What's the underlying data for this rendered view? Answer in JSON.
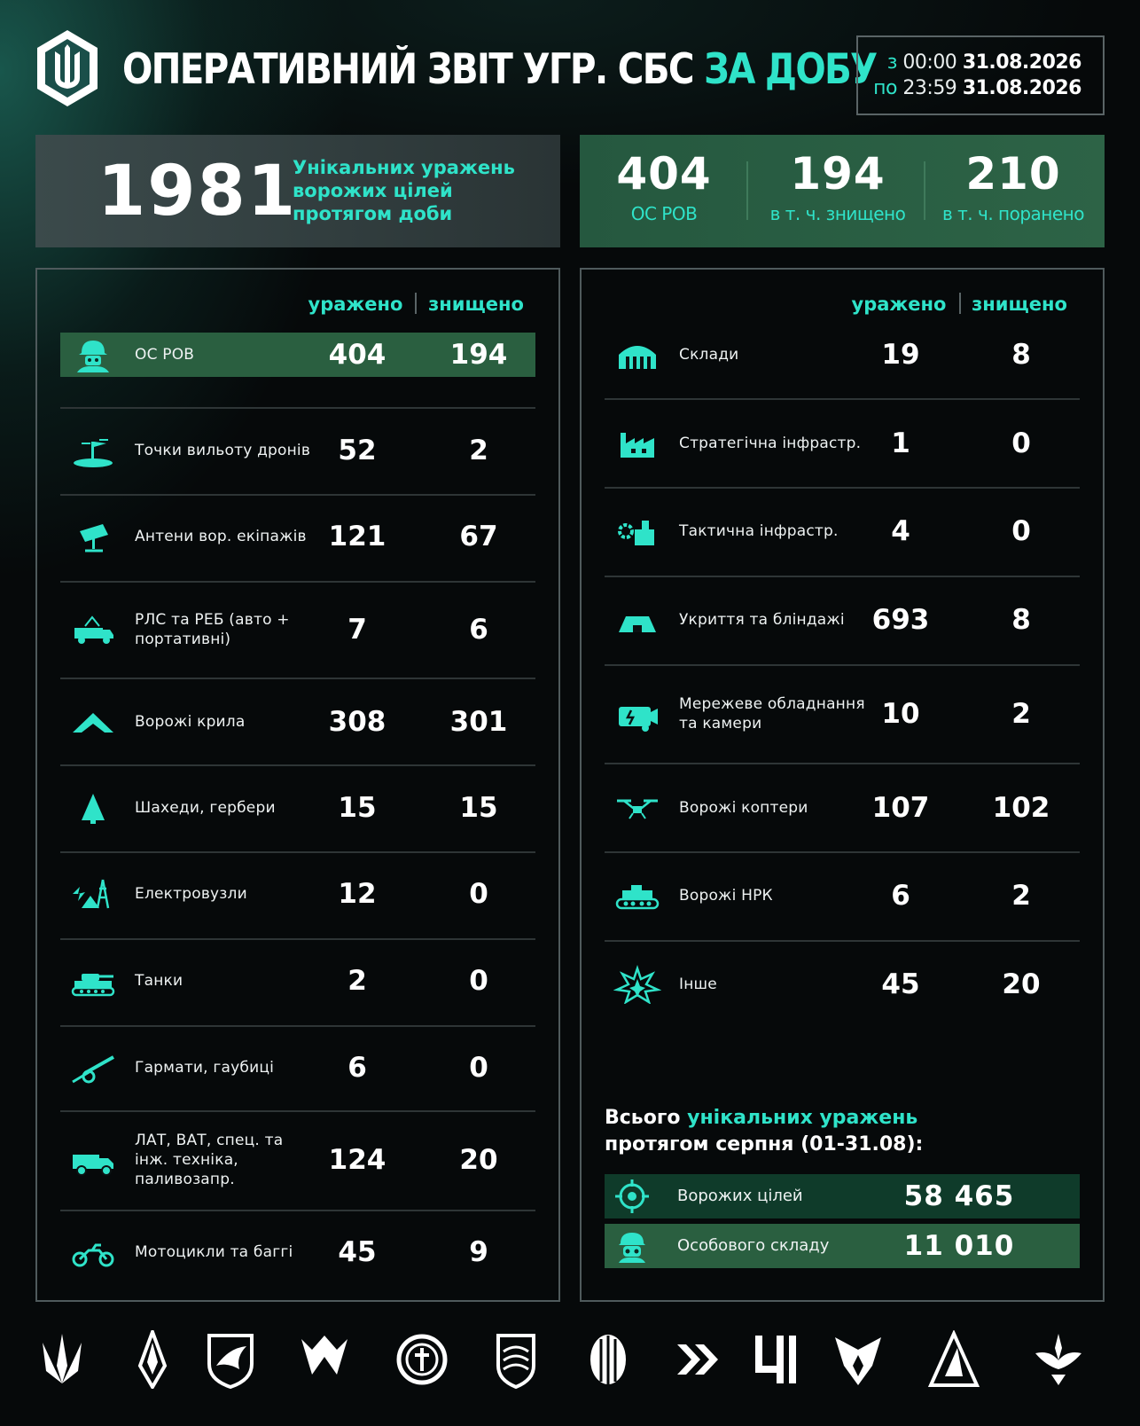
{
  "header": {
    "title_main": "ОПЕРАТИВНИЙ ЗВІТ УГР. СБС ",
    "title_accent": "ЗА ДОБУ",
    "period": {
      "from_prefix": "з",
      "from_time": "00:00",
      "from_date": "31.08.2026",
      "to_prefix": "по",
      "to_time": "23:59",
      "to_date": "31.08.2026"
    }
  },
  "summary": {
    "unique_hits": "1981",
    "unique_hits_label": "Унікальних уражень ворожих цілей протягом доби",
    "personnel": {
      "value": "404",
      "label": "ОС РОВ"
    },
    "killed": {
      "value": "194",
      "label": "в т. ч. знищено"
    },
    "wounded": {
      "value": "210",
      "label": "в т. ч. поранено"
    }
  },
  "columns": {
    "hit": "уражено",
    "destroyed": "знищено"
  },
  "left_rows": [
    {
      "icon": "soldier-icon",
      "label": "ОС РОВ",
      "hit": "404",
      "destroyed": "194"
    },
    {
      "icon": "drone-launch-point-icon",
      "label": "Точки вильоту дронів",
      "hit": "52",
      "destroyed": "2"
    },
    {
      "icon": "antenna-icon",
      "label": "Антени вор. екіпажів",
      "hit": "121",
      "destroyed": "67"
    },
    {
      "icon": "radar-truck-icon",
      "label": "РЛС та РЕБ (авто + портативні)",
      "hit": "7",
      "destroyed": "6"
    },
    {
      "icon": "wing-icon",
      "label": "Ворожі крила",
      "hit": "308",
      "destroyed": "301"
    },
    {
      "icon": "shahed-icon",
      "label": "Шахеди, гербери",
      "hit": "15",
      "destroyed": "15"
    },
    {
      "icon": "power-node-icon",
      "label": "Електровузли",
      "hit": "12",
      "destroyed": "0"
    },
    {
      "icon": "tank-icon",
      "label": "Танки",
      "hit": "2",
      "destroyed": "0"
    },
    {
      "icon": "howitzer-icon",
      "label": "Гармати, гаубиці",
      "hit": "6",
      "destroyed": "0"
    },
    {
      "icon": "truck-icon",
      "label": "ЛАТ, ВАТ, спец. та інж. техніка, паливозапр.",
      "hit": "124",
      "destroyed": "20"
    },
    {
      "icon": "motorcycle-icon",
      "label": "Мотоцикли та баггі",
      "hit": "45",
      "destroyed": "9"
    }
  ],
  "right_rows": [
    {
      "icon": "warehouse-icon",
      "label": "Склади",
      "hit": "19",
      "destroyed": "8"
    },
    {
      "icon": "factory-icon",
      "label": "Стратегічна інфрастр.",
      "hit": "1",
      "destroyed": "0"
    },
    {
      "icon": "gear-building-icon",
      "label": "Тактична інфрастр.",
      "hit": "4",
      "destroyed": "0"
    },
    {
      "icon": "bunker-icon",
      "label": "Укриття та бліндажі",
      "hit": "693",
      "destroyed": "8"
    },
    {
      "icon": "network-camera-icon",
      "label": "Мережеве обладнання та камери",
      "hit": "10",
      "destroyed": "2"
    },
    {
      "icon": "quadcopter-icon",
      "label": "Ворожі коптери",
      "hit": "107",
      "destroyed": "102"
    },
    {
      "icon": "ground-robot-icon",
      "label": "Ворожі НРК",
      "hit": "6",
      "destroyed": "2"
    },
    {
      "icon": "explosion-icon",
      "label": "Інше",
      "hit": "45",
      "destroyed": "20"
    }
  ],
  "monthly": {
    "title_pre": "Всього ",
    "title_accent": "унікальних уражень",
    "title_post": "протягом серпня (01-31.08):",
    "targets": {
      "label": "Ворожих цілей",
      "value": "58 465"
    },
    "personnel": {
      "label": "Особового складу",
      "value": "11 010"
    }
  },
  "colors": {
    "accent": "#2fe3c9",
    "highlight_green": "#2a5f40",
    "box_green": "#2d6346",
    "background": "#06090a"
  }
}
